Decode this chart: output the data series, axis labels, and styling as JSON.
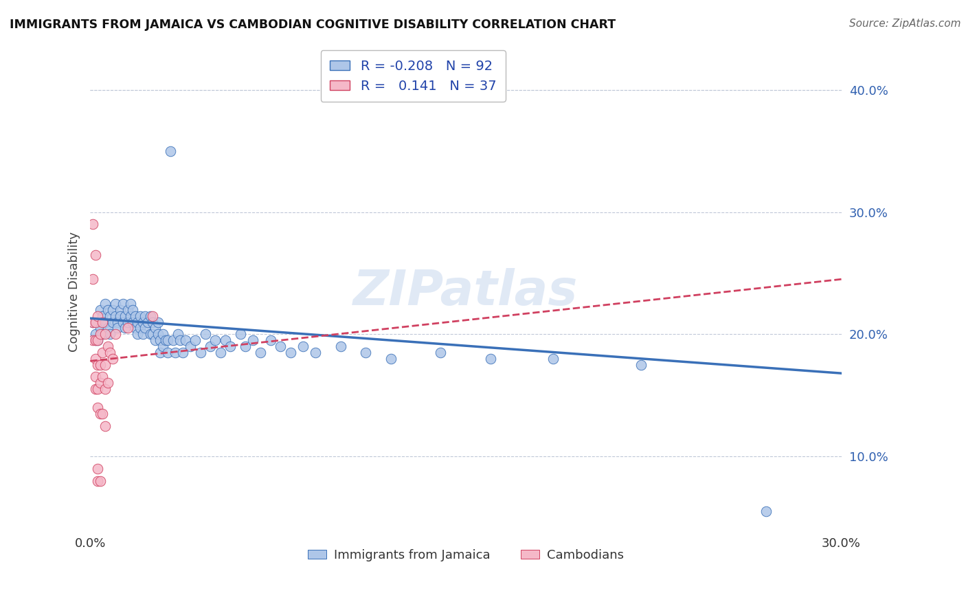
{
  "title": "IMMIGRANTS FROM JAMAICA VS CAMBODIAN COGNITIVE DISABILITY CORRELATION CHART",
  "source": "Source: ZipAtlas.com",
  "ylabel": "Cognitive Disability",
  "xlim": [
    0.0,
    0.3
  ],
  "ylim": [
    0.04,
    0.43
  ],
  "yticks": [
    0.1,
    0.2,
    0.3,
    0.4
  ],
  "ytick_labels": [
    "10.0%",
    "20.0%",
    "30.0%",
    "40.0%"
  ],
  "xticks": [
    0.0,
    0.05,
    0.1,
    0.15,
    0.2,
    0.25,
    0.3
  ],
  "xtick_labels": [
    "0.0%",
    "",
    "",
    "",
    "",
    "",
    "30.0%"
  ],
  "legend_R1": "-0.208",
  "legend_N1": "92",
  "legend_R2": "0.141",
  "legend_N2": "37",
  "color_jamaica": "#aec6e8",
  "color_cambodian": "#f5b8c8",
  "line_color_jamaica": "#3a70b8",
  "line_color_cambodian": "#d04060",
  "background_color": "#ffffff",
  "grid_color": "#c0c8d8",
  "watermark": "ZIPatlas",
  "jamaica_scatter": [
    [
      0.001,
      0.21
    ],
    [
      0.002,
      0.2
    ],
    [
      0.002,
      0.195
    ],
    [
      0.003,
      0.21
    ],
    [
      0.003,
      0.195
    ],
    [
      0.004,
      0.22
    ],
    [
      0.004,
      0.205
    ],
    [
      0.005,
      0.215
    ],
    [
      0.005,
      0.2
    ],
    [
      0.006,
      0.225
    ],
    [
      0.006,
      0.21
    ],
    [
      0.007,
      0.22
    ],
    [
      0.007,
      0.205
    ],
    [
      0.008,
      0.215
    ],
    [
      0.008,
      0.2
    ],
    [
      0.009,
      0.22
    ],
    [
      0.009,
      0.21
    ],
    [
      0.01,
      0.225
    ],
    [
      0.01,
      0.215
    ],
    [
      0.011,
      0.21
    ],
    [
      0.011,
      0.205
    ],
    [
      0.012,
      0.22
    ],
    [
      0.012,
      0.215
    ],
    [
      0.013,
      0.225
    ],
    [
      0.013,
      0.21
    ],
    [
      0.014,
      0.205
    ],
    [
      0.014,
      0.215
    ],
    [
      0.015,
      0.22
    ],
    [
      0.015,
      0.21
    ],
    [
      0.016,
      0.225
    ],
    [
      0.016,
      0.215
    ],
    [
      0.017,
      0.22
    ],
    [
      0.017,
      0.21
    ],
    [
      0.018,
      0.215
    ],
    [
      0.018,
      0.205
    ],
    [
      0.019,
      0.21
    ],
    [
      0.019,
      0.2
    ],
    [
      0.02,
      0.215
    ],
    [
      0.02,
      0.205
    ],
    [
      0.021,
      0.21
    ],
    [
      0.021,
      0.2
    ],
    [
      0.022,
      0.215
    ],
    [
      0.022,
      0.205
    ],
    [
      0.023,
      0.21
    ],
    [
      0.024,
      0.2
    ],
    [
      0.024,
      0.215
    ],
    [
      0.025,
      0.21
    ],
    [
      0.025,
      0.2
    ],
    [
      0.026,
      0.205
    ],
    [
      0.026,
      0.195
    ],
    [
      0.027,
      0.21
    ],
    [
      0.027,
      0.2
    ],
    [
      0.028,
      0.195
    ],
    [
      0.028,
      0.185
    ],
    [
      0.029,
      0.2
    ],
    [
      0.029,
      0.19
    ],
    [
      0.03,
      0.195
    ],
    [
      0.031,
      0.185
    ],
    [
      0.031,
      0.195
    ],
    [
      0.032,
      0.35
    ],
    [
      0.033,
      0.195
    ],
    [
      0.034,
      0.185
    ],
    [
      0.035,
      0.2
    ],
    [
      0.036,
      0.195
    ],
    [
      0.037,
      0.185
    ],
    [
      0.038,
      0.195
    ],
    [
      0.04,
      0.19
    ],
    [
      0.042,
      0.195
    ],
    [
      0.044,
      0.185
    ],
    [
      0.046,
      0.2
    ],
    [
      0.048,
      0.19
    ],
    [
      0.05,
      0.195
    ],
    [
      0.052,
      0.185
    ],
    [
      0.054,
      0.195
    ],
    [
      0.056,
      0.19
    ],
    [
      0.06,
      0.2
    ],
    [
      0.062,
      0.19
    ],
    [
      0.065,
      0.195
    ],
    [
      0.068,
      0.185
    ],
    [
      0.072,
      0.195
    ],
    [
      0.076,
      0.19
    ],
    [
      0.08,
      0.185
    ],
    [
      0.085,
      0.19
    ],
    [
      0.09,
      0.185
    ],
    [
      0.1,
      0.19
    ],
    [
      0.11,
      0.185
    ],
    [
      0.12,
      0.18
    ],
    [
      0.14,
      0.185
    ],
    [
      0.16,
      0.18
    ],
    [
      0.185,
      0.18
    ],
    [
      0.22,
      0.175
    ],
    [
      0.27,
      0.055
    ]
  ],
  "cambodian_scatter": [
    [
      0.001,
      0.29
    ],
    [
      0.001,
      0.245
    ],
    [
      0.001,
      0.21
    ],
    [
      0.001,
      0.195
    ],
    [
      0.002,
      0.265
    ],
    [
      0.002,
      0.21
    ],
    [
      0.002,
      0.195
    ],
    [
      0.002,
      0.18
    ],
    [
      0.002,
      0.165
    ],
    [
      0.002,
      0.155
    ],
    [
      0.003,
      0.215
    ],
    [
      0.003,
      0.195
    ],
    [
      0.003,
      0.175
    ],
    [
      0.003,
      0.155
    ],
    [
      0.003,
      0.14
    ],
    [
      0.003,
      0.09
    ],
    [
      0.003,
      0.08
    ],
    [
      0.004,
      0.2
    ],
    [
      0.004,
      0.175
    ],
    [
      0.004,
      0.16
    ],
    [
      0.004,
      0.135
    ],
    [
      0.004,
      0.08
    ],
    [
      0.005,
      0.21
    ],
    [
      0.005,
      0.185
    ],
    [
      0.005,
      0.165
    ],
    [
      0.005,
      0.135
    ],
    [
      0.006,
      0.2
    ],
    [
      0.006,
      0.175
    ],
    [
      0.006,
      0.155
    ],
    [
      0.006,
      0.125
    ],
    [
      0.007,
      0.19
    ],
    [
      0.007,
      0.16
    ],
    [
      0.008,
      0.185
    ],
    [
      0.009,
      0.18
    ],
    [
      0.01,
      0.2
    ],
    [
      0.015,
      0.205
    ],
    [
      0.025,
      0.215
    ]
  ],
  "jamaica_line_x": [
    0.0,
    0.3
  ],
  "jamaica_line_y": [
    0.213,
    0.168
  ],
  "cambodian_line_x": [
    0.0,
    0.3
  ],
  "cambodian_line_y": [
    0.178,
    0.245
  ]
}
